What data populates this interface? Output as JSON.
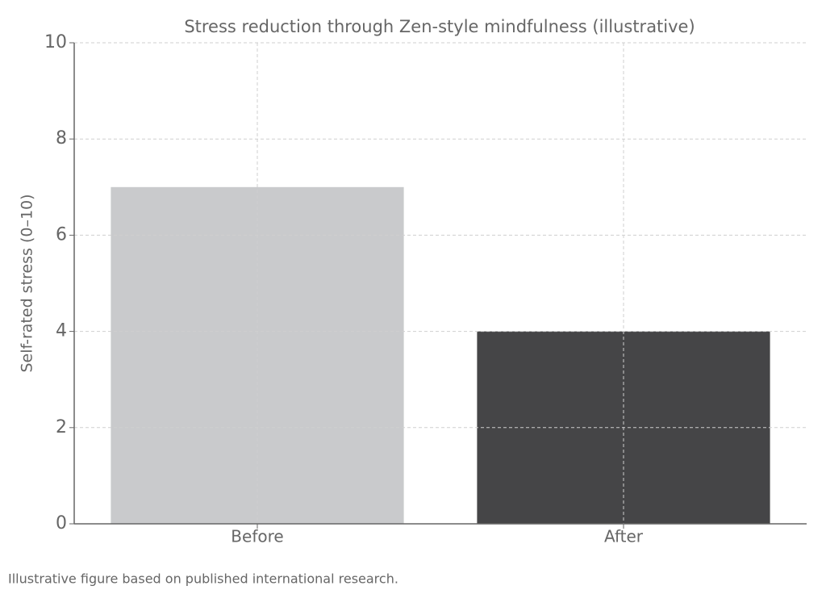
{
  "chart_data": {
    "type": "bar",
    "title": "Stress reduction through Zen-style mindfulness (illustrative)",
    "y_label": "Self-rated stress (0–10)",
    "categories": [
      "Before",
      "After"
    ],
    "values": [
      7,
      4
    ],
    "colors": [
      "#c9cacc",
      "#454547"
    ],
    "ylim": [
      0,
      10
    ],
    "yticks": [
      0,
      2,
      4,
      6,
      8,
      10
    ],
    "grid": true,
    "footnote": "Illustrative figure based on published international research."
  }
}
